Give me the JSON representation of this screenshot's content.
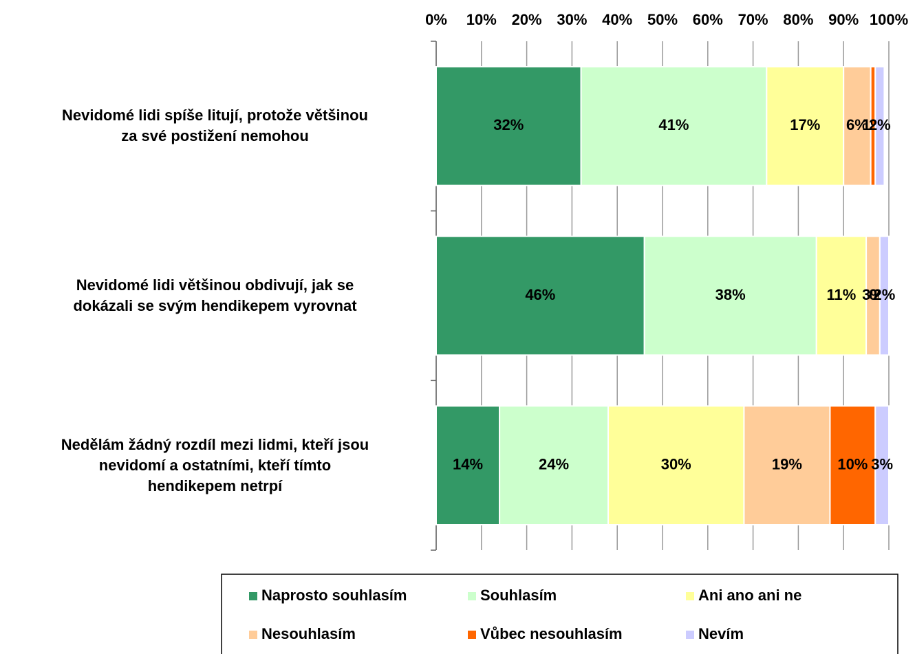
{
  "chart_data": {
    "type": "stacked_barh",
    "categories": [
      "Nevidomé lidi spíše litují, protože většinou\nza své postižení nemohou",
      "Nevidomé lidi většinou obdivují, jak se\ndokázali se svým hendikepem vyrovnat",
      "Nedělám žádný rozdíl mezi lidmi, kteří jsou\nnevidomí a ostatními, kteří tímto\nhendikepem netrpí"
    ],
    "series": [
      {
        "name": "Naprosto souhlasím",
        "color": "#339966",
        "values": [
          32,
          46,
          14
        ],
        "value_labels": [
          "32%",
          "46%",
          "14%"
        ]
      },
      {
        "name": "Souhlasím",
        "color": "#ccffcc",
        "values": [
          41,
          38,
          24
        ],
        "value_labels": [
          "41%",
          "38%",
          "24%"
        ]
      },
      {
        "name": "Ani ano ani ne",
        "color": "#ffff99",
        "values": [
          17,
          11,
          30
        ],
        "value_labels": [
          "17%",
          "11%",
          "30%"
        ]
      },
      {
        "name": "Nesouhlasím",
        "color": "#ffcc99",
        "values": [
          6,
          3,
          19
        ],
        "value_labels": [
          "6%",
          "3%",
          "19%"
        ]
      },
      {
        "name": "Vůbec nesouhlasím",
        "color": "#ff6600",
        "values": [
          1,
          0,
          10
        ],
        "value_labels": [
          "1%",
          "0%",
          "10%"
        ]
      },
      {
        "name": "Nevím",
        "color": "#ccccff",
        "values": [
          2,
          2,
          3
        ],
        "value_labels": [
          "2%",
          "2%",
          "3%"
        ]
      }
    ],
    "xlim": [
      0,
      100
    ],
    "xticks": [
      {
        "value": 0,
        "label": "0%"
      },
      {
        "value": 10,
        "label": "10%"
      },
      {
        "value": 20,
        "label": "20%"
      },
      {
        "value": 30,
        "label": "30%"
      },
      {
        "value": 40,
        "label": "40%"
      },
      {
        "value": 50,
        "label": "50%"
      },
      {
        "value": 60,
        "label": "60%"
      },
      {
        "value": 70,
        "label": "70%"
      },
      {
        "value": 80,
        "label": "80%"
      },
      {
        "value": 90,
        "label": "90%"
      },
      {
        "value": 100,
        "label": "100%"
      }
    ],
    "grid": true,
    "legend": "bottom"
  }
}
